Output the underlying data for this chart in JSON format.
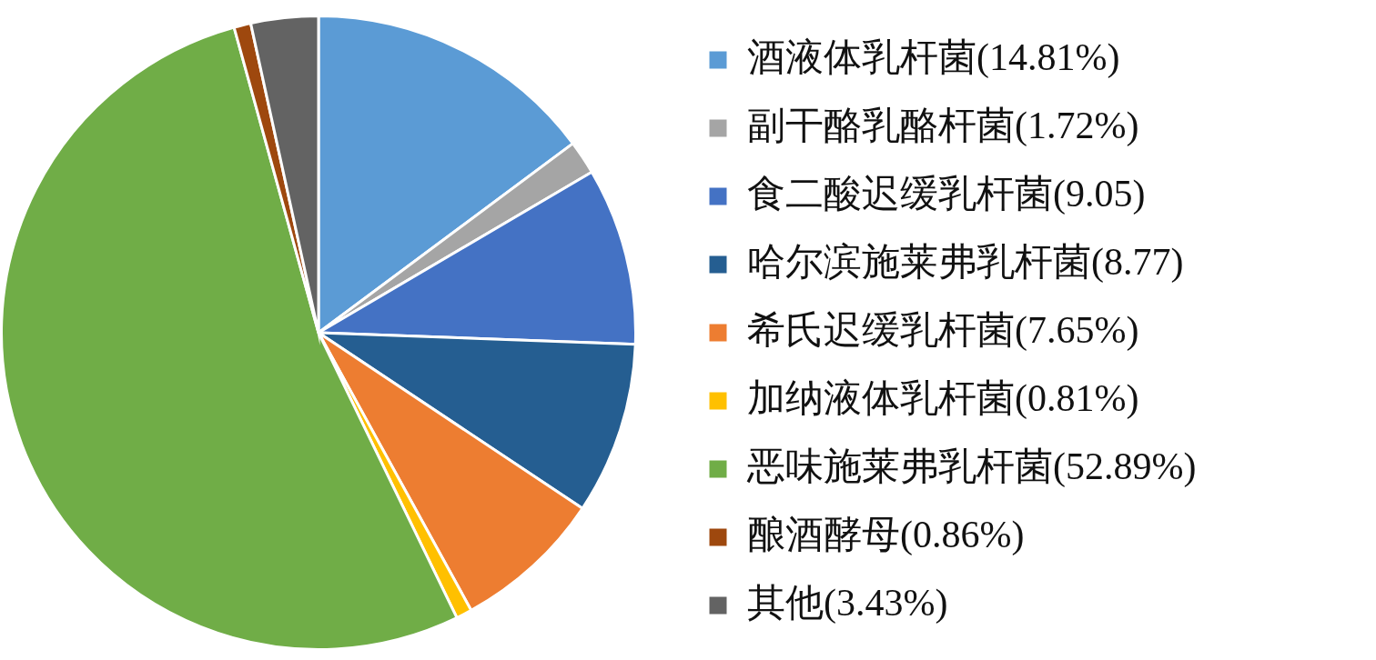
{
  "chart_data": {
    "type": "pie",
    "categories": [
      "酒液体乳杆菌(14.81%)",
      "副干酪乳酪杆菌(1.72%)",
      "食二酸迟缓乳杆菌(9.05)",
      "哈尔滨施莱弗乳杆菌(8.77)",
      "希氏迟缓乳杆菌(7.65%)",
      "加纳液体乳杆菌(0.81%)",
      "恶味施莱弗乳杆菌(52.89%)",
      "酿酒酵母(0.86%)",
      "其他(3.43%)"
    ],
    "values": [
      14.81,
      1.72,
      9.05,
      8.77,
      7.65,
      0.81,
      52.89,
      0.86,
      3.43
    ],
    "colors": [
      "#5b9bd5",
      "#a5a5a5",
      "#4472c4",
      "#255e91",
      "#ed7d31",
      "#ffc000",
      "#70ad47",
      "#9e480e",
      "#636363"
    ],
    "legend": "right"
  }
}
